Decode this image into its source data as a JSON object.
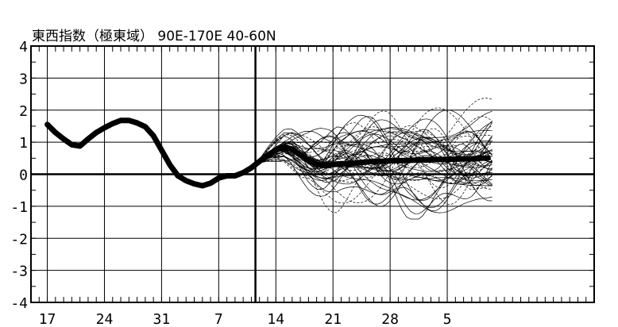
{
  "chart_data": {
    "type": "line",
    "title": "東西指数（極東域） 90E-170E 40-60N",
    "xlabel": "",
    "ylabel": "",
    "ylim": [
      -4,
      4
    ],
    "x_range_days": [
      -2,
      67
    ],
    "x_ticks": [
      {
        "day": 0,
        "label": "17"
      },
      {
        "day": 7,
        "label": "24"
      },
      {
        "day": 14,
        "label": "31"
      },
      {
        "day": 21,
        "label": "7"
      },
      {
        "day": 28,
        "label": "14"
      },
      {
        "day": 35,
        "label": "21"
      },
      {
        "day": 42,
        "label": "28"
      },
      {
        "day": 49,
        "label": "5"
      }
    ],
    "y_ticks": [
      -4,
      -3,
      -2,
      -1,
      0,
      1,
      2,
      3,
      4
    ],
    "forecast_start_day": 25.5,
    "series": [
      {
        "name": "analysis_and_ensemble_mean",
        "x": [
          0,
          1,
          2,
          3,
          4,
          5,
          6,
          7,
          8,
          9,
          10,
          11,
          12,
          13,
          14,
          15,
          16,
          17,
          18,
          19,
          20,
          21,
          22,
          23,
          24,
          25,
          26,
          27,
          28,
          29,
          30,
          31,
          32,
          33,
          34,
          35,
          36,
          37,
          38,
          39,
          40,
          41,
          42,
          43,
          44,
          45,
          46,
          47,
          48,
          49,
          50,
          51,
          52,
          53,
          54
        ],
        "values": [
          1.55,
          1.3,
          1.1,
          0.92,
          0.88,
          1.1,
          1.3,
          1.45,
          1.58,
          1.68,
          1.68,
          1.6,
          1.48,
          1.2,
          0.75,
          0.3,
          -0.05,
          -0.2,
          -0.3,
          -0.36,
          -0.28,
          -0.12,
          -0.05,
          -0.05,
          0.05,
          0.2,
          0.4,
          0.6,
          0.75,
          0.85,
          0.78,
          0.6,
          0.42,
          0.32,
          0.27,
          0.3,
          0.33,
          0.33,
          0.36,
          0.38,
          0.4,
          0.4,
          0.42,
          0.42,
          0.43,
          0.44,
          0.45,
          0.45,
          0.46,
          0.46,
          0.47,
          0.48,
          0.48,
          0.5,
          0.5
        ]
      }
    ],
    "ensemble": {
      "member_count": 51,
      "start_day": 25.5,
      "end_day": 54.5,
      "range": [
        -1.4,
        2.4
      ]
    }
  }
}
